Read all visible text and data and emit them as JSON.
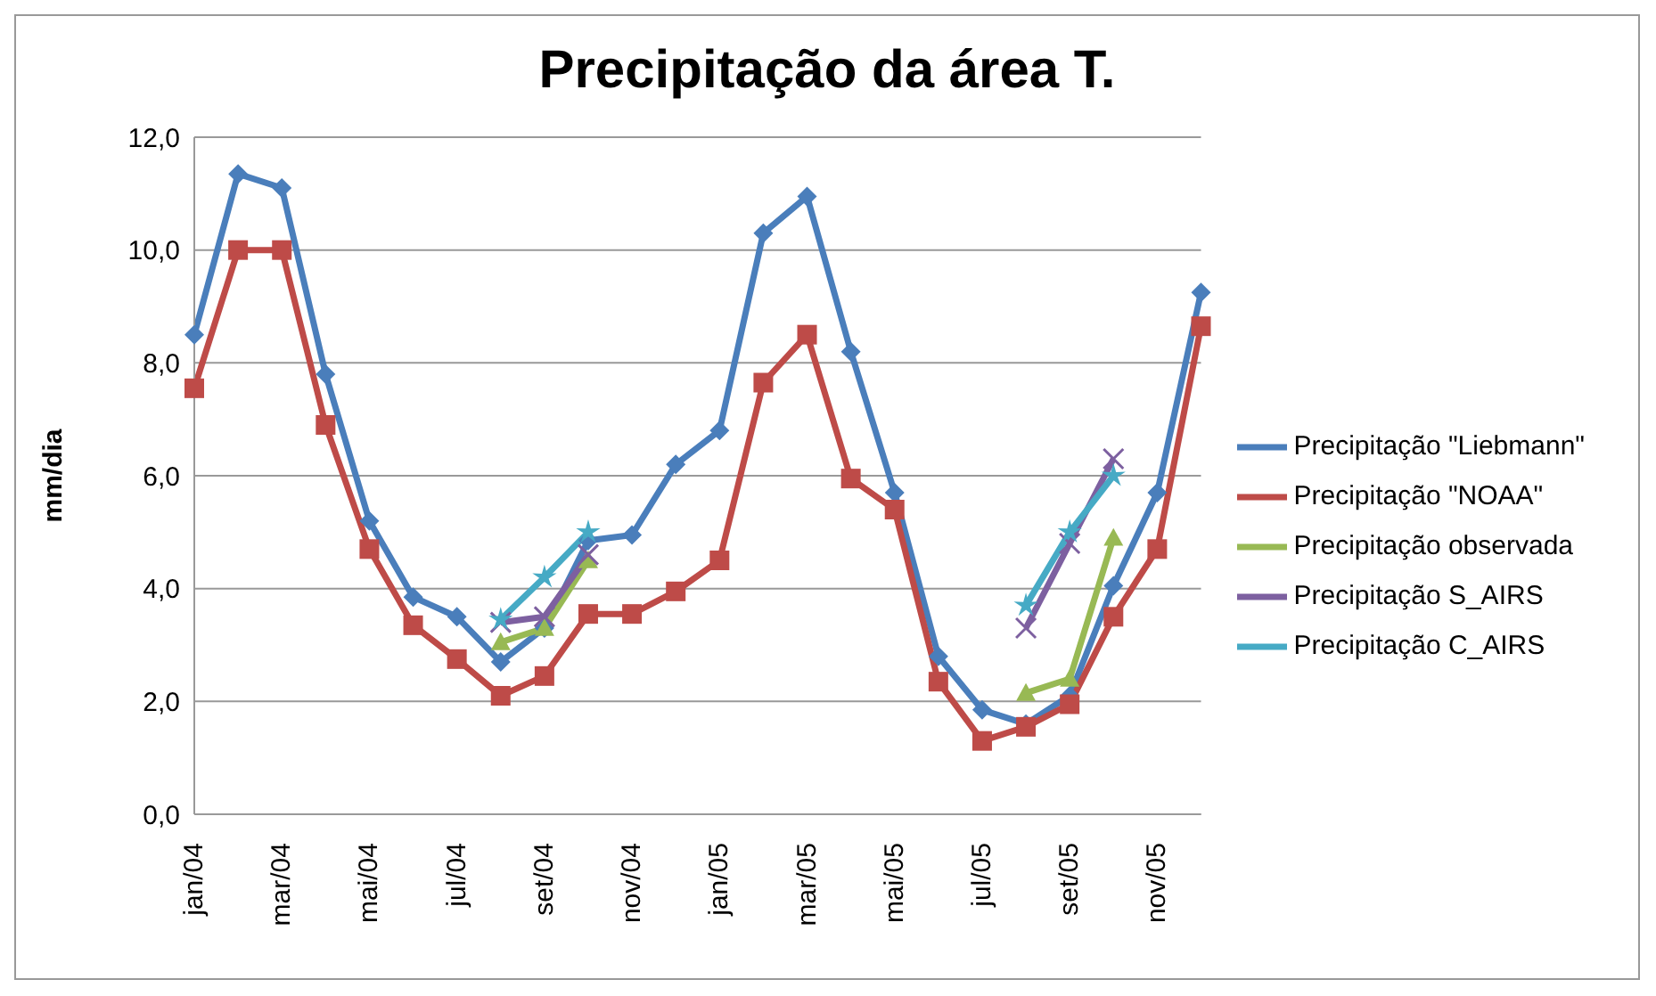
{
  "chart_data": {
    "type": "line",
    "title": "Precipitação da área T.",
    "ylabel": "mm/dia",
    "categories": [
      "jan/04",
      null,
      "mar/04",
      null,
      "mai/04",
      null,
      "jul/04",
      null,
      "set/04",
      null,
      "nov/04",
      null,
      "jan/05",
      null,
      "mar/05",
      null,
      "mai/05",
      null,
      "jul/05",
      null,
      "set/05",
      null,
      "nov/05",
      null
    ],
    "series": [
      {
        "name": "Precipitação \"Liebmann\"",
        "color": "#4a7ebb",
        "marker": "diamond",
        "values": [
          8.5,
          11.35,
          11.1,
          7.8,
          5.2,
          3.85,
          3.5,
          2.7,
          3.3,
          4.85,
          4.95,
          6.2,
          6.8,
          10.3,
          10.95,
          8.2,
          5.7,
          2.8,
          1.85,
          1.6,
          2.1,
          4.05,
          5.7,
          9.25
        ]
      },
      {
        "name": "Precipitação \"NOAA\"",
        "color": "#be4b48",
        "marker": "square",
        "values": [
          7.55,
          10.0,
          10.0,
          6.9,
          4.7,
          3.35,
          2.75,
          2.1,
          2.45,
          3.55,
          3.55,
          3.95,
          4.5,
          7.65,
          8.5,
          5.95,
          5.4,
          2.35,
          1.3,
          1.55,
          1.95,
          3.5,
          4.7,
          8.65
        ]
      },
      {
        "name": "Precipitação observada",
        "color": "#98b954",
        "marker": "triangle",
        "values": [
          null,
          null,
          null,
          null,
          null,
          null,
          null,
          3.05,
          3.3,
          4.5,
          null,
          null,
          null,
          null,
          null,
          null,
          null,
          null,
          null,
          2.15,
          2.4,
          4.9,
          null,
          null
        ]
      },
      {
        "name": "Precipitação S_AIRS",
        "color": "#7d60a0",
        "marker": "cross",
        "values": [
          null,
          null,
          null,
          null,
          null,
          null,
          null,
          3.4,
          3.5,
          4.6,
          null,
          null,
          null,
          null,
          null,
          null,
          null,
          null,
          null,
          3.3,
          4.8,
          6.3,
          null,
          null
        ]
      },
      {
        "name": "Precipitação C_AIRS",
        "color": "#46aac5",
        "marker": "star",
        "values": [
          null,
          null,
          null,
          null,
          null,
          null,
          null,
          3.45,
          4.2,
          5.0,
          null,
          null,
          null,
          null,
          null,
          null,
          null,
          null,
          null,
          3.7,
          5.0,
          6.0,
          null,
          null
        ]
      }
    ],
    "ylim": [
      0,
      12
    ],
    "yticks": [
      {
        "value": 0,
        "label": "0,0"
      },
      {
        "value": 2,
        "label": "2,0"
      },
      {
        "value": 4,
        "label": "4,0"
      },
      {
        "value": 6,
        "label": "6,0"
      },
      {
        "value": 8,
        "label": "8,0"
      },
      {
        "value": 10,
        "label": "10,0"
      },
      {
        "value": 12,
        "label": "12,0"
      }
    ],
    "grid": "y",
    "legend": "right",
    "line_style": "solid"
  }
}
